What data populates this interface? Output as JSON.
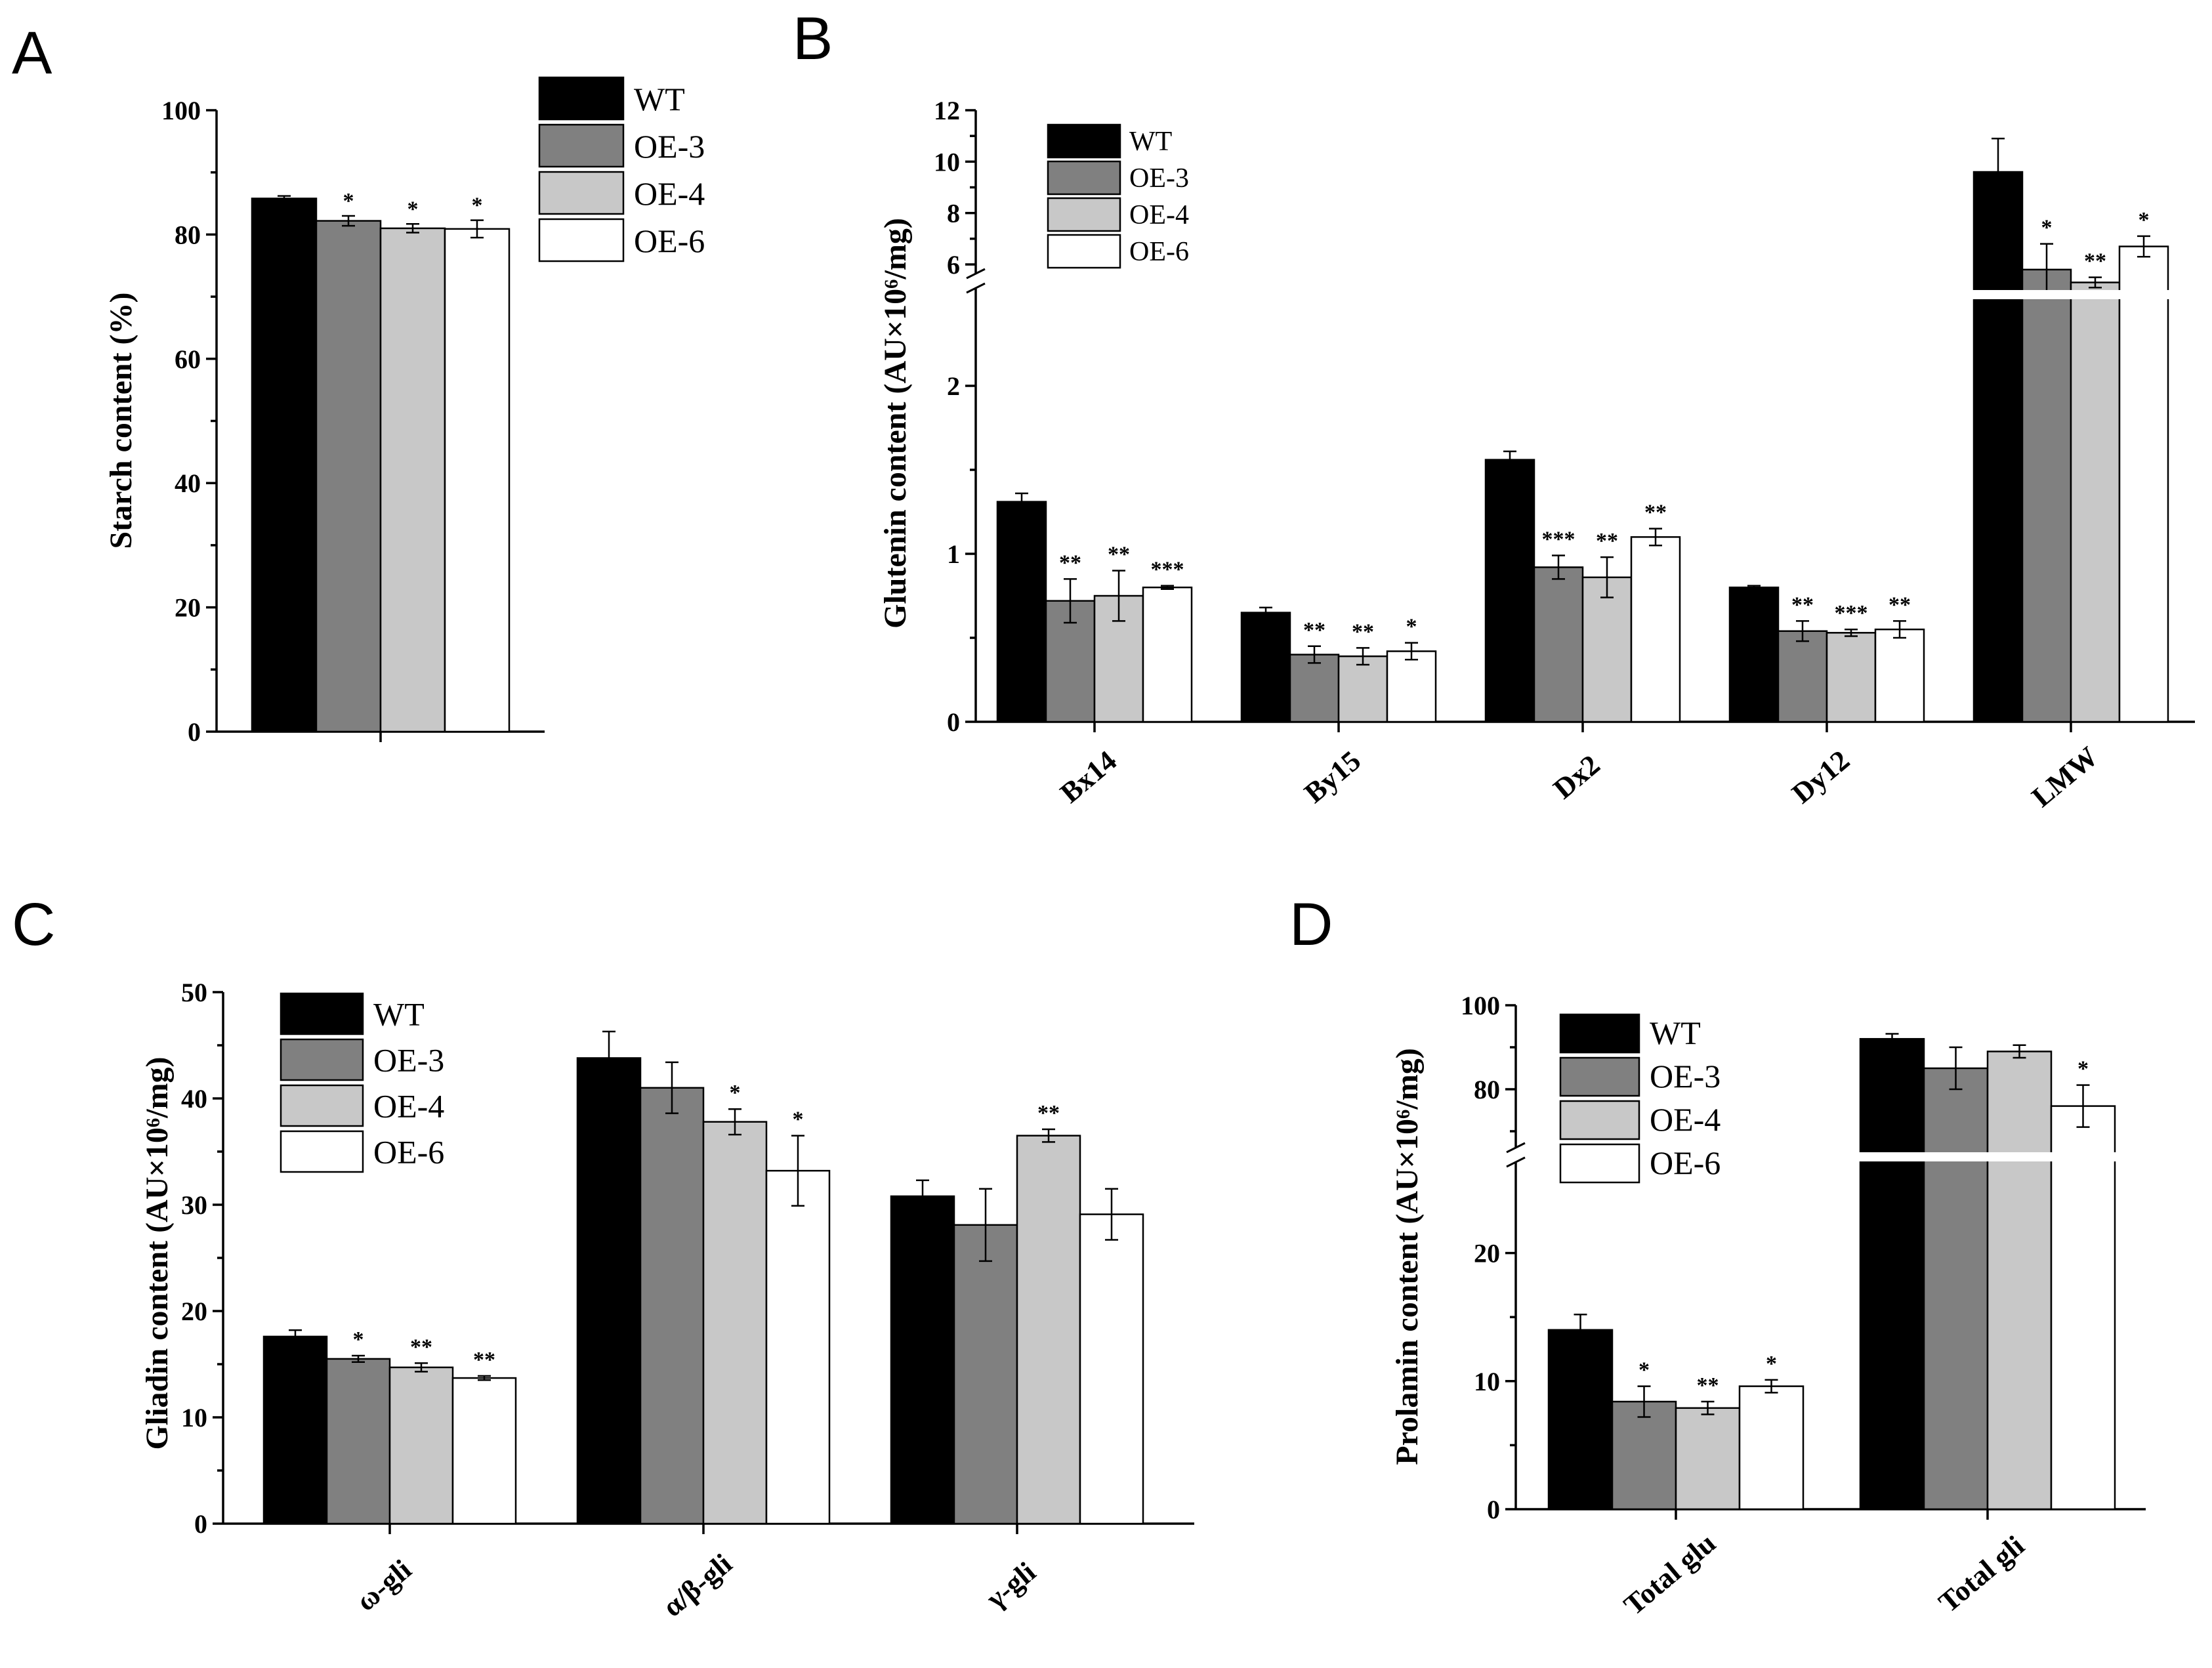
{
  "colors": {
    "WT": "#000000",
    "OE-3": "#808080",
    "OE-4": "#c8c8c8",
    "OE-6": "#ffffff"
  },
  "chart_data": [
    {
      "panel": "A",
      "type": "bar",
      "ylabel": "Starch content (%)",
      "ylim": [
        0,
        100
      ],
      "yticks": [
        0,
        20,
        40,
        60,
        80,
        100
      ],
      "legend": [
        "WT",
        "OE-3",
        "OE-4",
        "OE-6"
      ],
      "categories": [
        ""
      ],
      "series": [
        {
          "name": "WT",
          "values": [
            85.8
          ],
          "errors": [
            0.4
          ],
          "sig": [
            ""
          ]
        },
        {
          "name": "OE-3",
          "values": [
            82.2
          ],
          "errors": [
            0.8
          ],
          "sig": [
            "*"
          ]
        },
        {
          "name": "OE-4",
          "values": [
            81.0
          ],
          "errors": [
            0.7
          ],
          "sig": [
            "*"
          ]
        },
        {
          "name": "OE-6",
          "values": [
            80.9
          ],
          "errors": [
            1.4
          ],
          "sig": [
            "*"
          ]
        }
      ]
    },
    {
      "panel": "B",
      "type": "bar",
      "ylabel": "Glutenin content (AU×10⁶/mg)",
      "axis_break": {
        "lower_range": [
          0,
          2.5
        ],
        "upper_range": [
          5,
          12
        ]
      },
      "yticks_lower": [
        0,
        1,
        2
      ],
      "yticks_upper": [
        6,
        8,
        10,
        12
      ],
      "legend": [
        "WT",
        "OE-3",
        "OE-4",
        "OE-6"
      ],
      "categories": [
        "Bx14",
        "By15",
        "Dx2",
        "Dy12",
        "LMW"
      ],
      "series": [
        {
          "name": "WT",
          "values": [
            1.31,
            0.65,
            1.56,
            0.8,
            9.6
          ],
          "errors": [
            0.05,
            0.03,
            0.05,
            0.01,
            1.3
          ],
          "sig": [
            "",
            "",
            "",
            "",
            ""
          ]
        },
        {
          "name": "OE-3",
          "values": [
            0.72,
            0.4,
            0.92,
            0.54,
            5.8
          ],
          "errors": [
            0.13,
            0.05,
            0.07,
            0.06,
            1.0
          ],
          "sig": [
            "**",
            "**",
            "***",
            "**",
            "*"
          ]
        },
        {
          "name": "OE-4",
          "values": [
            0.75,
            0.39,
            0.86,
            0.53,
            5.3
          ],
          "errors": [
            0.15,
            0.05,
            0.12,
            0.02,
            0.2
          ],
          "sig": [
            "**",
            "**",
            "**",
            "***",
            "**"
          ]
        },
        {
          "name": "OE-6",
          "values": [
            0.8,
            0.42,
            1.1,
            0.55,
            6.7
          ],
          "errors": [
            0.01,
            0.05,
            0.05,
            0.05,
            0.4
          ],
          "sig": [
            "***",
            "*",
            "**",
            "**",
            "*"
          ]
        }
      ]
    },
    {
      "panel": "C",
      "type": "bar",
      "ylabel": "Gliadin content (AU×10⁶/mg)",
      "ylim": [
        0,
        50
      ],
      "yticks": [
        0,
        10,
        20,
        30,
        40,
        50
      ],
      "legend": [
        "WT",
        "OE-3",
        "OE-4",
        "OE-6"
      ],
      "categories": [
        "ω-gli",
        "α/β-gli",
        "γ-gli"
      ],
      "series": [
        {
          "name": "WT",
          "values": [
            17.6,
            43.8,
            30.8
          ],
          "errors": [
            0.6,
            2.5,
            1.5
          ],
          "sig": [
            "",
            "",
            ""
          ]
        },
        {
          "name": "OE-3",
          "values": [
            15.5,
            41.0,
            28.1
          ],
          "errors": [
            0.3,
            2.4,
            3.4
          ],
          "sig": [
            "*",
            "",
            ""
          ]
        },
        {
          "name": "OE-4",
          "values": [
            14.7,
            37.8,
            36.5
          ],
          "errors": [
            0.4,
            1.2,
            0.6
          ],
          "sig": [
            "**",
            "*",
            "**"
          ]
        },
        {
          "name": "OE-6",
          "values": [
            13.7,
            33.2,
            29.1
          ],
          "errors": [
            0.2,
            3.3,
            2.4
          ],
          "sig": [
            "**",
            "*",
            ""
          ]
        }
      ]
    },
    {
      "panel": "D",
      "type": "bar",
      "ylabel": "Prolamin content (AU×10⁶/mg)",
      "axis_break": {
        "lower_range": [
          0,
          27
        ],
        "upper_range": [
          65,
          100
        ]
      },
      "yticks_lower": [
        0,
        10,
        20
      ],
      "yticks_upper": [
        80,
        100
      ],
      "legend": [
        "WT",
        "OE-3",
        "OE-4",
        "OE-6"
      ],
      "categories": [
        "Total glu",
        "Total gli"
      ],
      "series": [
        {
          "name": "WT",
          "values": [
            14.0,
            92.0
          ],
          "errors": [
            1.2,
            1.2
          ],
          "sig": [
            "",
            ""
          ]
        },
        {
          "name": "OE-3",
          "values": [
            8.4,
            85.0
          ],
          "errors": [
            1.2,
            5.0
          ],
          "sig": [
            "*",
            ""
          ]
        },
        {
          "name": "OE-4",
          "values": [
            7.9,
            89.0
          ],
          "errors": [
            0.5,
            1.5
          ],
          "sig": [
            "**",
            ""
          ]
        },
        {
          "name": "OE-6",
          "values": [
            9.6,
            76.0
          ],
          "errors": [
            0.5,
            5.0
          ],
          "sig": [
            "*",
            "*"
          ]
        }
      ]
    }
  ]
}
